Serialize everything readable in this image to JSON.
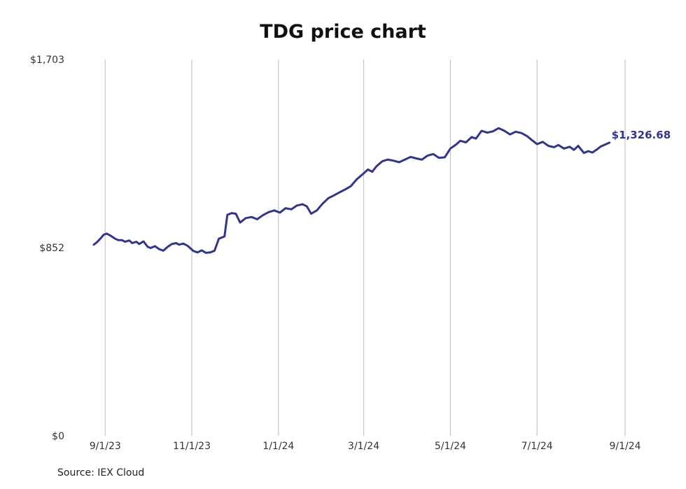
{
  "chart_data": {
    "type": "line",
    "title": "TDG price chart",
    "source": "Source: IEX Cloud",
    "series_color": "#33348e",
    "gridline_color": "#bbbbbb",
    "ylim": [
      0,
      1703
    ],
    "y_ticks": [
      {
        "value": 0,
        "label": "$0"
      },
      {
        "value": 852,
        "label": "$852"
      },
      {
        "value": 1703,
        "label": "$1,703"
      }
    ],
    "xlim": [
      "2023-08-24",
      "2024-09-01"
    ],
    "x_ticks": [
      {
        "date": "2023-09-01",
        "label": "9/1/23"
      },
      {
        "date": "2023-11-01",
        "label": "11/1/23"
      },
      {
        "date": "2024-01-01",
        "label": "1/1/24"
      },
      {
        "date": "2024-03-01",
        "label": "3/1/24"
      },
      {
        "date": "2024-05-01",
        "label": "5/1/24"
      },
      {
        "date": "2024-07-01",
        "label": "7/1/24"
      },
      {
        "date": "2024-09-01",
        "label": "9/1/24"
      }
    ],
    "grid": "vertical",
    "end_label": "$1,326.68",
    "series": [
      {
        "points": [
          [
            "2023-08-24",
            865
          ],
          [
            "2023-08-26",
            875
          ],
          [
            "2023-08-29",
            895
          ],
          [
            "2023-08-31",
            910
          ],
          [
            "2023-09-02",
            915
          ],
          [
            "2023-09-05",
            905
          ],
          [
            "2023-09-08",
            892
          ],
          [
            "2023-09-10",
            886
          ],
          [
            "2023-09-13",
            885
          ],
          [
            "2023-09-15",
            878
          ],
          [
            "2023-09-18",
            884
          ],
          [
            "2023-09-20",
            872
          ],
          [
            "2023-09-23",
            878
          ],
          [
            "2023-09-25",
            868
          ],
          [
            "2023-09-28",
            880
          ],
          [
            "2023-10-01",
            855
          ],
          [
            "2023-10-03",
            850
          ],
          [
            "2023-10-06",
            858
          ],
          [
            "2023-10-09",
            845
          ],
          [
            "2023-10-12",
            838
          ],
          [
            "2023-10-15",
            855
          ],
          [
            "2023-10-18",
            868
          ],
          [
            "2023-10-21",
            872
          ],
          [
            "2023-10-23",
            865
          ],
          [
            "2023-10-26",
            870
          ],
          [
            "2023-10-29",
            860
          ],
          [
            "2023-11-02",
            837
          ],
          [
            "2023-11-05",
            830
          ],
          [
            "2023-11-08",
            839
          ],
          [
            "2023-11-11",
            828
          ],
          [
            "2023-11-14",
            830
          ],
          [
            "2023-11-17",
            838
          ],
          [
            "2023-11-20",
            892
          ],
          [
            "2023-11-24",
            902
          ],
          [
            "2023-11-26",
            1000
          ],
          [
            "2023-11-29",
            1008
          ],
          [
            "2023-12-02",
            1005
          ],
          [
            "2023-12-05",
            965
          ],
          [
            "2023-12-09",
            985
          ],
          [
            "2023-12-13",
            990
          ],
          [
            "2023-12-17",
            980
          ],
          [
            "2023-12-21",
            998
          ],
          [
            "2023-12-25",
            1012
          ],
          [
            "2023-12-29",
            1020
          ],
          [
            "2024-01-02",
            1010
          ],
          [
            "2024-01-06",
            1030
          ],
          [
            "2024-01-10",
            1025
          ],
          [
            "2024-01-14",
            1042
          ],
          [
            "2024-01-18",
            1048
          ],
          [
            "2024-01-21",
            1038
          ],
          [
            "2024-01-24",
            1005
          ],
          [
            "2024-01-28",
            1020
          ],
          [
            "2024-02-01",
            1050
          ],
          [
            "2024-02-05",
            1075
          ],
          [
            "2024-02-09",
            1088
          ],
          [
            "2024-02-13",
            1102
          ],
          [
            "2024-02-17",
            1115
          ],
          [
            "2024-02-21",
            1130
          ],
          [
            "2024-02-25",
            1160
          ],
          [
            "2024-03-01",
            1188
          ],
          [
            "2024-03-04",
            1205
          ],
          [
            "2024-03-07",
            1195
          ],
          [
            "2024-03-10",
            1220
          ],
          [
            "2024-03-14",
            1242
          ],
          [
            "2024-03-18",
            1250
          ],
          [
            "2024-03-22",
            1245
          ],
          [
            "2024-03-26",
            1238
          ],
          [
            "2024-03-30",
            1250
          ],
          [
            "2024-04-03",
            1262
          ],
          [
            "2024-04-07",
            1255
          ],
          [
            "2024-04-11",
            1250
          ],
          [
            "2024-04-15",
            1268
          ],
          [
            "2024-04-19",
            1275
          ],
          [
            "2024-04-23",
            1258
          ],
          [
            "2024-04-27",
            1260
          ],
          [
            "2024-05-01",
            1300
          ],
          [
            "2024-05-05",
            1318
          ],
          [
            "2024-05-08",
            1335
          ],
          [
            "2024-05-12",
            1328
          ],
          [
            "2024-05-16",
            1352
          ],
          [
            "2024-05-19",
            1345
          ],
          [
            "2024-05-23",
            1380
          ],
          [
            "2024-05-27",
            1372
          ],
          [
            "2024-05-31",
            1378
          ],
          [
            "2024-06-04",
            1392
          ],
          [
            "2024-06-08",
            1380
          ],
          [
            "2024-06-12",
            1364
          ],
          [
            "2024-06-16",
            1376
          ],
          [
            "2024-06-20",
            1370
          ],
          [
            "2024-06-24",
            1356
          ],
          [
            "2024-06-27",
            1340
          ],
          [
            "2024-07-01",
            1320
          ],
          [
            "2024-07-05",
            1330
          ],
          [
            "2024-07-09",
            1312
          ],
          [
            "2024-07-13",
            1306
          ],
          [
            "2024-07-16",
            1316
          ],
          [
            "2024-07-20",
            1300
          ],
          [
            "2024-07-24",
            1308
          ],
          [
            "2024-07-27",
            1294
          ],
          [
            "2024-07-30",
            1312
          ],
          [
            "2024-08-03",
            1280
          ],
          [
            "2024-08-06",
            1288
          ],
          [
            "2024-08-09",
            1282
          ],
          [
            "2024-08-12",
            1295
          ],
          [
            "2024-08-15",
            1310
          ],
          [
            "2024-08-18",
            1318
          ],
          [
            "2024-08-21",
            1326.68
          ]
        ]
      }
    ]
  }
}
